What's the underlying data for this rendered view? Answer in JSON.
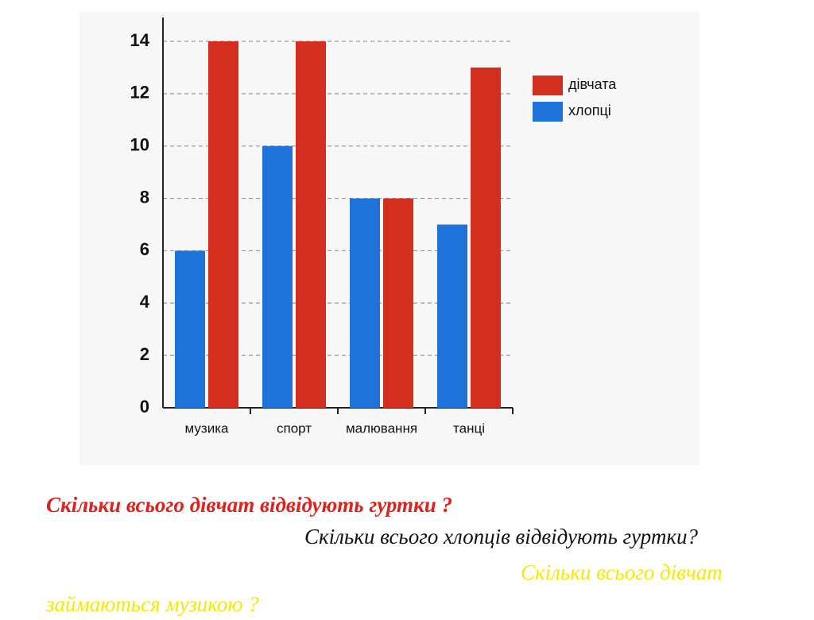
{
  "chart_data": {
    "type": "bar",
    "categories": [
      "музика",
      "спорт",
      "малювання",
      "танці"
    ],
    "series": [
      {
        "name": "хлопці",
        "color": "#1f72d8",
        "values": [
          6,
          10,
          8,
          7
        ]
      },
      {
        "name": "дівчата",
        "color": "#d42e1e",
        "values": [
          14,
          14,
          8,
          13
        ]
      }
    ],
    "ylim": [
      0,
      14
    ],
    "yticks": [
      0,
      2,
      4,
      6,
      8,
      10,
      12,
      14
    ],
    "grid": true,
    "legend": "right"
  },
  "questions": [
    "Скільки  всього дівчат відвідують гуртки ?",
    "Скільки всього хлопців відвідують гуртки?",
    "Скільки всього дівчат займаються музикою ?"
  ]
}
